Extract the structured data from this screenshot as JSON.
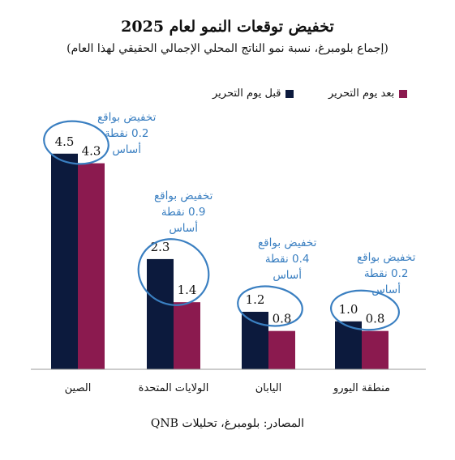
{
  "chart_data": {
    "type": "bar",
    "title": "تخفيض توقعات النمو لعام 2025",
    "subtitle": "(إجماع بلومبرغ، نسبة نمو الناتج المحلي الإجمالي الحقيقي لهذا العام)",
    "categories": [
      "الصين",
      "الولايات المتحدة",
      "اليابان",
      "منطقة اليورو"
    ],
    "series": [
      {
        "name": "قبل يوم التحرير",
        "values": [
          4.5,
          2.3,
          1.2,
          1.0
        ],
        "labels": [
          "4.5",
          "2.3",
          "1.2",
          "1.0"
        ]
      },
      {
        "name": "بعد يوم التحرير",
        "values": [
          4.3,
          1.4,
          0.8,
          0.8
        ],
        "labels": [
          "4.3",
          "1.4",
          "0.8",
          "0.8"
        ]
      }
    ],
    "ylim": [
      0,
      4.8
    ],
    "grid": false,
    "legend": "top",
    "annotations": [
      [
        "تخفيض بواقع",
        "0.2 نقطة",
        "أساس"
      ],
      [
        "تخفيض بواقع",
        "0.9 نقطة",
        "أساس"
      ],
      [
        "تخفيض بواقع",
        "0.4 نقطة",
        "أساس"
      ],
      [
        "تخفيض بواقع",
        "0.2 نقطة",
        "أساس"
      ]
    ],
    "source": "المصادر: بلومبرغ، تحليلات QNB"
  },
  "colors": {
    "before": "#0c1a3d",
    "after": "#8b1a4f",
    "annotation": "#3a7fc1",
    "axis": "#999999"
  }
}
